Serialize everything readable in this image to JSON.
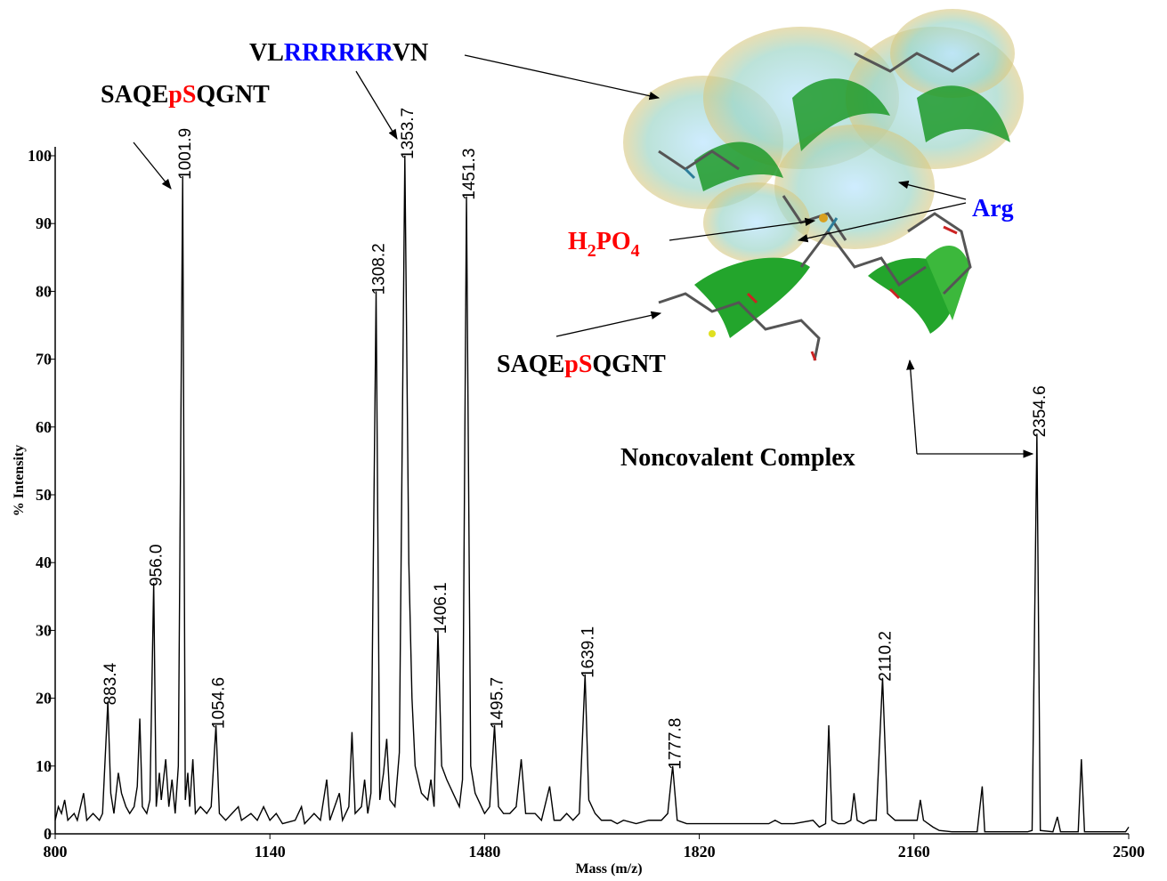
{
  "chart_data": {
    "type": "line",
    "x_label": "Mass (m/z)",
    "y_label": "% Intensity",
    "xlim": [
      800,
      2500
    ],
    "xticks": [
      800,
      1140,
      1480,
      1820,
      2160,
      2500
    ],
    "ylim": [
      0,
      100
    ],
    "yticks": [
      0,
      10,
      20,
      30,
      40,
      50,
      60,
      70,
      80,
      90,
      100
    ],
    "color": "#000000",
    "x": [
      800,
      805,
      810,
      815,
      820,
      830,
      835,
      845,
      850,
      860,
      870,
      875,
      883.4,
      888,
      893,
      900,
      905,
      912,
      918,
      925,
      930,
      934,
      938,
      945,
      950,
      956,
      960,
      965,
      968,
      975,
      980,
      985,
      990,
      995,
      1001.9,
      1006,
      1010,
      1013,
      1018,
      1022,
      1030,
      1040,
      1047,
      1054.6,
      1060,
      1070,
      1080,
      1090,
      1095,
      1110,
      1120,
      1130,
      1140,
      1150,
      1160,
      1180,
      1190,
      1195,
      1210,
      1220,
      1230,
      1235,
      1250,
      1255,
      1265,
      1270,
      1275,
      1285,
      1290,
      1295,
      1300,
      1308.2,
      1314,
      1320,
      1325,
      1330,
      1338,
      1345,
      1353.7,
      1360,
      1365,
      1370,
      1380,
      1390,
      1395,
      1400,
      1406.1,
      1412,
      1420,
      1430,
      1440,
      1445,
      1451.3,
      1458,
      1465,
      1475,
      1480,
      1488,
      1495.7,
      1502,
      1510,
      1520,
      1530,
      1538,
      1545,
      1560,
      1570,
      1583,
      1590,
      1600,
      1610,
      1620,
      1630,
      1639.1,
      1645,
      1655,
      1665,
      1680,
      1690,
      1700,
      1720,
      1740,
      1760,
      1770,
      1777.8,
      1785,
      1800,
      1820,
      1850,
      1880,
      1900,
      1930,
      1940,
      1950,
      1970,
      2000,
      2010,
      2020,
      2025,
      2030,
      2040,
      2050,
      2060,
      2065,
      2070,
      2080,
      2090,
      2100,
      2110.2,
      2118,
      2130,
      2145,
      2155,
      2165,
      2170,
      2175,
      2190,
      2200,
      2220,
      2240,
      2260,
      2268,
      2272,
      2300,
      2340,
      2347,
      2354.6,
      2360,
      2380,
      2387,
      2392,
      2420,
      2425,
      2430,
      2470,
      2495,
      2500
    ],
    "values": [
      2,
      4,
      3,
      5,
      2,
      3,
      2,
      6,
      2,
      3,
      2,
      3,
      19.5,
      6,
      3,
      9,
      6,
      4,
      3,
      4,
      7,
      17,
      4,
      3,
      5,
      37,
      4,
      9,
      5,
      11,
      4,
      8,
      3,
      10,
      97,
      5,
      9,
      4,
      11,
      3,
      4,
      3,
      4,
      16,
      3,
      2,
      3,
      4,
      2,
      3,
      2,
      4,
      2,
      3,
      1.5,
      2,
      4,
      1.5,
      3,
      2,
      8,
      2,
      6,
      2,
      4,
      15,
      3,
      4,
      8,
      3,
      6,
      80,
      5,
      9,
      14,
      5,
      4,
      12,
      100,
      40,
      20,
      10,
      6,
      5,
      8,
      4,
      30,
      10,
      8,
      6,
      4,
      8,
      94,
      10,
      6,
      4,
      3,
      4,
      16,
      4,
      3,
      3,
      4,
      11,
      3,
      3,
      2,
      7,
      2,
      2,
      3,
      2,
      3,
      23.5,
      5,
      3,
      2,
      2,
      1.5,
      2,
      1.5,
      2,
      2,
      3,
      10,
      2,
      1.5,
      1.5,
      1.5,
      1.5,
      1.5,
      1.5,
      2,
      1.5,
      1.5,
      2,
      1,
      1.5,
      16,
      2,
      1.5,
      1.5,
      2,
      6,
      2,
      1.5,
      2,
      2,
      23,
      3,
      2,
      2,
      2,
      2,
      5,
      2,
      1,
      0.5,
      0.3,
      0.3,
      0.3,
      7,
      0.3,
      0.3,
      0.3,
      0.5,
      59,
      0.5,
      0.3,
      2.5,
      0.3,
      0.3,
      11,
      0.3,
      0.3,
      0.3,
      1
    ],
    "peak_labels": [
      {
        "x": 883.4,
        "label": "883.4"
      },
      {
        "x": 956.0,
        "label": "956.0"
      },
      {
        "x": 1001.9,
        "label": "1001.9"
      },
      {
        "x": 1054.6,
        "label": "1054.6"
      },
      {
        "x": 1308.2,
        "label": "1308.2"
      },
      {
        "x": 1353.7,
        "label": "1353.7"
      },
      {
        "x": 1406.1,
        "label": "1406.1"
      },
      {
        "x": 1451.3,
        "label": "1451.3"
      },
      {
        "x": 1495.7,
        "label": "1495.7"
      },
      {
        "x": 1639.1,
        "label": "1639.1"
      },
      {
        "x": 1777.8,
        "label": "1777.8"
      },
      {
        "x": 2110.2,
        "label": "2110.2"
      },
      {
        "x": 2354.6,
        "label": "2354.6"
      }
    ],
    "annotations": [
      {
        "parts": [
          {
            "text": "SAQE"
          },
          {
            "text": "pS",
            "color": "#ff0000"
          },
          {
            "text": "QGNT"
          }
        ]
      },
      {
        "parts": [
          {
            "text": "VL"
          },
          {
            "text": "RRRRKR",
            "color": "#0000ff"
          },
          {
            "text": "VN"
          }
        ]
      },
      {
        "parts": [
          {
            "text": "H",
            "color": "#ff0000"
          },
          {
            "text": "2",
            "color": "#ff0000",
            "sub": true
          },
          {
            "text": "PO",
            "color": "#ff0000"
          },
          {
            "text": "4",
            "color": "#ff0000",
            "sub": true
          }
        ]
      },
      {
        "parts": [
          {
            "text": "Arg",
            "color": "#0000ff"
          }
        ]
      },
      {
        "parts": [
          {
            "text": "SAQE"
          },
          {
            "text": "pS",
            "color": "#ff0000"
          },
          {
            "text": "QGNT"
          }
        ]
      },
      {
        "parts": [
          {
            "text": "Noncovalent Complex"
          }
        ]
      }
    ]
  }
}
